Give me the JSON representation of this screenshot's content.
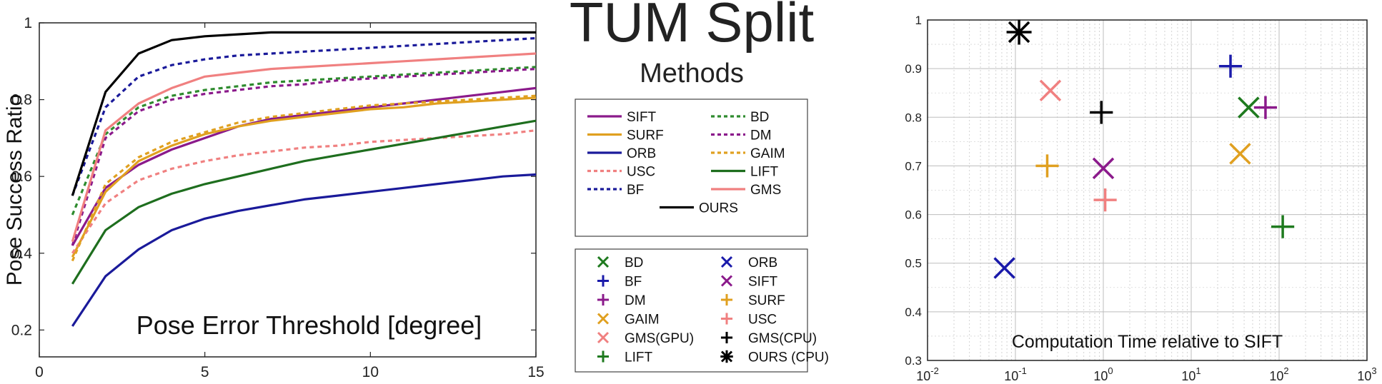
{
  "header": {
    "title": "TUM Split",
    "methods_label": "Methods"
  },
  "chart_data": [
    {
      "type": "line",
      "title": "",
      "xlabel": "Pose Error Threshold [degree]",
      "ylabel": "Pose Success Ratio",
      "xlim": [
        0,
        15
      ],
      "ylim": [
        0.13,
        1
      ],
      "xticks": [
        0,
        5,
        10,
        15
      ],
      "yticks": [
        0.2,
        0.4,
        0.6,
        0.8,
        1
      ],
      "grid": false,
      "x": [
        1,
        2,
        3,
        4,
        5,
        6,
        7,
        8,
        9,
        10,
        11,
        12,
        13,
        14,
        15
      ],
      "series": [
        {
          "name": "SIFT",
          "color": "#8B1A8B",
          "dash": "solid",
          "values": [
            0.42,
            0.57,
            0.63,
            0.67,
            0.7,
            0.73,
            0.75,
            0.76,
            0.77,
            0.78,
            0.79,
            0.8,
            0.81,
            0.82,
            0.83
          ]
        },
        {
          "name": "SURF",
          "color": "#E0A020",
          "dash": "solid",
          "values": [
            0.39,
            0.56,
            0.64,
            0.68,
            0.71,
            0.73,
            0.745,
            0.755,
            0.765,
            0.775,
            0.78,
            0.79,
            0.795,
            0.8,
            0.805
          ]
        },
        {
          "name": "ORB",
          "color": "#1A1A9A",
          "dash": "solid",
          "values": [
            0.21,
            0.34,
            0.41,
            0.46,
            0.49,
            0.51,
            0.525,
            0.54,
            0.55,
            0.56,
            0.57,
            0.58,
            0.59,
            0.6,
            0.605
          ]
        },
        {
          "name": "USC",
          "color": "#F08080",
          "dash": "dashed",
          "values": [
            0.4,
            0.53,
            0.59,
            0.62,
            0.64,
            0.655,
            0.665,
            0.675,
            0.68,
            0.69,
            0.695,
            0.7,
            0.705,
            0.71,
            0.72
          ]
        },
        {
          "name": "BF",
          "color": "#1A1A9A",
          "dash": "dashed",
          "values": [
            0.55,
            0.78,
            0.86,
            0.89,
            0.905,
            0.915,
            0.92,
            0.925,
            0.93,
            0.935,
            0.94,
            0.945,
            0.95,
            0.955,
            0.96
          ]
        },
        {
          "name": "BD",
          "color": "#2E8B2E",
          "dash": "dashed",
          "values": [
            0.5,
            0.71,
            0.78,
            0.81,
            0.825,
            0.835,
            0.845,
            0.85,
            0.855,
            0.86,
            0.865,
            0.87,
            0.875,
            0.88,
            0.885
          ]
        },
        {
          "name": "DM",
          "color": "#8B1A8B",
          "dash": "dashed",
          "values": [
            0.42,
            0.7,
            0.77,
            0.8,
            0.815,
            0.825,
            0.835,
            0.84,
            0.85,
            0.855,
            0.86,
            0.865,
            0.87,
            0.875,
            0.88
          ]
        },
        {
          "name": "GAIM",
          "color": "#E0A020",
          "dash": "dashed",
          "values": [
            0.38,
            0.58,
            0.65,
            0.69,
            0.715,
            0.74,
            0.755,
            0.765,
            0.775,
            0.785,
            0.79,
            0.795,
            0.8,
            0.805,
            0.81
          ]
        },
        {
          "name": "LIFT",
          "color": "#1E6E1E",
          "dash": "solid",
          "values": [
            0.32,
            0.46,
            0.52,
            0.555,
            0.58,
            0.6,
            0.62,
            0.64,
            0.655,
            0.67,
            0.685,
            0.7,
            0.715,
            0.73,
            0.745
          ]
        },
        {
          "name": "GMS",
          "color": "#F08080",
          "dash": "solid",
          "values": [
            0.43,
            0.72,
            0.79,
            0.83,
            0.86,
            0.87,
            0.88,
            0.885,
            0.89,
            0.895,
            0.9,
            0.905,
            0.91,
            0.915,
            0.92
          ]
        },
        {
          "name": "OURS",
          "color": "#000000",
          "dash": "solid",
          "values": [
            0.55,
            0.82,
            0.92,
            0.955,
            0.965,
            0.97,
            0.975,
            0.975,
            0.975,
            0.975,
            0.975,
            0.975,
            0.975,
            0.975,
            0.975
          ]
        }
      ],
      "legend": {
        "placement": "center",
        "layout": [
          [
            "SIFT",
            "BD"
          ],
          [
            "SURF",
            "DM"
          ],
          [
            "ORB",
            "GAIM"
          ],
          [
            "USC",
            "LIFT"
          ],
          [
            "BF",
            "GMS"
          ],
          [
            "OURS"
          ]
        ]
      }
    },
    {
      "type": "scatter",
      "title": "",
      "xlabel": "Computation Time relative to SIFT",
      "ylabel": "",
      "x_scale": "log",
      "xlim": [
        0.01,
        1000
      ],
      "ylim": [
        0.3,
        1
      ],
      "xtick_exponents": [
        "-2",
        "-1",
        "0",
        "1",
        "2",
        "3"
      ],
      "xtick_base": "10",
      "yticks": [
        "0.3",
        "0.4",
        "0.5",
        "0.6",
        "0.7",
        "0.8",
        "0.9",
        "1"
      ],
      "grid": true,
      "points": [
        {
          "name": "BD",
          "x": 45,
          "y": 0.82,
          "marker": "x",
          "color": "#1E7A1E"
        },
        {
          "name": "BF",
          "x": 28,
          "y": 0.905,
          "marker": "+",
          "color": "#1A1AAA"
        },
        {
          "name": "DM",
          "x": 70,
          "y": 0.82,
          "marker": "+",
          "color": "#8B1A8B"
        },
        {
          "name": "GAIM",
          "x": 36,
          "y": 0.725,
          "marker": "x",
          "color": "#E0A020"
        },
        {
          "name": "GMS(GPU)",
          "x": 0.25,
          "y": 0.855,
          "marker": "x",
          "color": "#F08080"
        },
        {
          "name": "LIFT",
          "x": 110,
          "y": 0.575,
          "marker": "+",
          "color": "#1E7A1E"
        },
        {
          "name": "ORB",
          "x": 0.075,
          "y": 0.49,
          "marker": "x",
          "color": "#1A1AAA"
        },
        {
          "name": "SIFT",
          "x": 1.0,
          "y": 0.695,
          "marker": "x",
          "color": "#8B1A8B"
        },
        {
          "name": "SURF",
          "x": 0.23,
          "y": 0.7,
          "marker": "+",
          "color": "#E0A020"
        },
        {
          "name": "USC",
          "x": 1.05,
          "y": 0.63,
          "marker": "+",
          "color": "#F08080"
        },
        {
          "name": "GMS(CPU)",
          "x": 0.95,
          "y": 0.81,
          "marker": "+",
          "color": "#000000"
        },
        {
          "name": "OURS (CPU)",
          "x": 0.11,
          "y": 0.975,
          "marker": "*",
          "color": "#000000"
        }
      ],
      "legend": {
        "placement": "center",
        "layout": [
          [
            "BD",
            "ORB"
          ],
          [
            "BF",
            "SIFT"
          ],
          [
            "DM",
            "SURF"
          ],
          [
            "GAIM",
            "USC"
          ],
          [
            "GMS(GPU)",
            "GMS(CPU)"
          ],
          [
            "LIFT",
            "OURS (CPU)"
          ]
        ]
      }
    }
  ]
}
